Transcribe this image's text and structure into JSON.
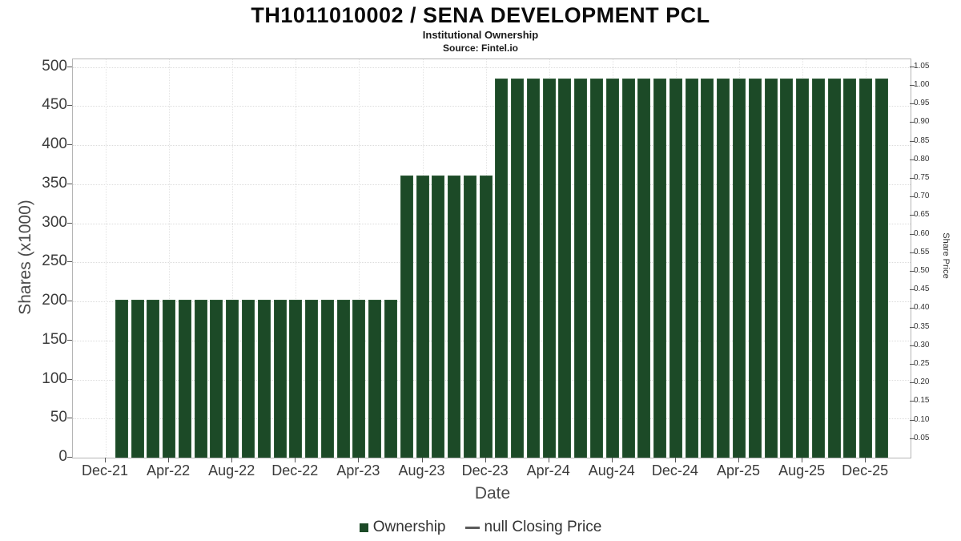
{
  "chart_data": {
    "type": "bar",
    "title": "TH1011010002 / SENA DEVELOPMENT PCL",
    "subtitle": "Institutional Ownership",
    "source": "Source: Fintel.io",
    "xlabel": "Date",
    "ylabel_left": "Shares (x1000)",
    "ylabel_right": "Share Price",
    "grid": true,
    "legend_position": "bottom",
    "colors": {
      "bar": "#1c4a27",
      "bar_border": "#2e5b38",
      "dash": "#5a5a5a",
      "text": "#333333"
    },
    "legend": [
      {
        "label": "Ownership",
        "marker": "square",
        "color": "#1c4a27"
      },
      {
        "label": "null Closing Price",
        "marker": "dash",
        "color": "#5a5a5a"
      }
    ],
    "x_ticks": [
      "Dec-21",
      "Apr-22",
      "Aug-22",
      "Dec-22",
      "Apr-23",
      "Aug-23",
      "Dec-23",
      "Apr-24",
      "Aug-24",
      "Dec-24",
      "Apr-25",
      "Aug-25",
      "Dec-25"
    ],
    "y_left": {
      "min": 0,
      "max": 500,
      "step": 50
    },
    "y_right": {
      "min": 0.05,
      "max": 1.05,
      "step": 0.05,
      "decimals": 2
    },
    "ylim_left": [
      0,
      510
    ],
    "ylim_right": [
      0,
      1.0709
    ],
    "series": [
      {
        "name": "Ownership",
        "type": "bar",
        "color": "#1c4a27",
        "x": [
          "Jan-22",
          "Feb-22",
          "Mar-22",
          "Apr-22",
          "May-22",
          "Jun-22",
          "Jul-22",
          "Aug-22",
          "Sep-22",
          "Oct-22",
          "Nov-22",
          "Dec-22",
          "Jan-23",
          "Feb-23",
          "Mar-23",
          "Apr-23",
          "May-23",
          "Jun-23",
          "Jul-23",
          "Aug-23",
          "Sep-23",
          "Oct-23",
          "Nov-23",
          "Dec-23",
          "Jan-24",
          "Feb-24",
          "Mar-24",
          "Apr-24",
          "May-24",
          "Jun-24",
          "Jul-24",
          "Aug-24",
          "Sep-24",
          "Oct-24",
          "Nov-24",
          "Dec-24",
          "Jan-25",
          "Feb-25",
          "Mar-25",
          "Apr-25",
          "May-25",
          "Jun-25",
          "Jul-25",
          "Aug-25",
          "Sep-25",
          "Oct-25",
          "Nov-25",
          "Dec-25",
          "Jan-26"
        ],
        "values": [
          202,
          202,
          202,
          202,
          202,
          202,
          202,
          202,
          202,
          202,
          202,
          202,
          202,
          202,
          202,
          202,
          202,
          202,
          361,
          361,
          361,
          361,
          361,
          361,
          485,
          485,
          485,
          485,
          485,
          485,
          485,
          485,
          485,
          485,
          485,
          485,
          485,
          485,
          485,
          485,
          485,
          485,
          485,
          485,
          485,
          485,
          485,
          485,
          485
        ]
      },
      {
        "name": "null Closing Price",
        "type": "line",
        "color": "#5a5a5a",
        "values": []
      }
    ]
  }
}
